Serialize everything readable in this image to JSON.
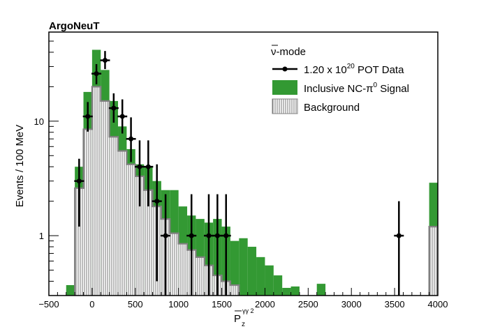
{
  "chart_data": {
    "type": "bar",
    "title": "ArgoNeuT",
    "xlabel_main": "P",
    "xlabel_sup": "γγ 2",
    "xlabel_sub": "z",
    "ylabel": "Events / 100 MeV",
    "xlim": [
      -500,
      4000
    ],
    "ylim": [
      0.3,
      60
    ],
    "yscale": "log",
    "x_ticks": [
      -500,
      0,
      500,
      1000,
      1500,
      2000,
      2500,
      3000,
      3500,
      4000
    ],
    "x_tick_labels": [
      "−500",
      "0",
      "500",
      "1000",
      "1500",
      "2000",
      "2500",
      "3000",
      "3500",
      "4000"
    ],
    "y_ticks": [
      1,
      10
    ],
    "y_tick_labels": [
      "1",
      "10"
    ],
    "legend_placement": "top-right",
    "legend": {
      "header_prefix": "ν",
      "header_suffix": "-mode",
      "data": {
        "pre": "1.20 x 10",
        "sup": "20",
        "post": " POT Data"
      },
      "signal": {
        "pre": "Inclusive NC-π",
        "sup": "0",
        "post": " Signal"
      },
      "background": "Background"
    },
    "colors": {
      "signal": "#339933",
      "background_line": "#808080",
      "data": "#000000"
    },
    "bin_width": 100,
    "series": [
      {
        "name": "Background",
        "bins": [
          {
            "x0": -200,
            "x1": -100,
            "value": 2.6
          },
          {
            "x0": -100,
            "x1": 0,
            "value": 8.5
          },
          {
            "x0": 0,
            "x1": 100,
            "value": 20
          },
          {
            "x0": 100,
            "x1": 200,
            "value": 15
          },
          {
            "x0": 200,
            "x1": 300,
            "value": 7.3
          },
          {
            "x0": 300,
            "x1": 400,
            "value": 5.5
          },
          {
            "x0": 400,
            "x1": 500,
            "value": 4.2
          },
          {
            "x0": 500,
            "x1": 600,
            "value": 3.3
          },
          {
            "x0": 600,
            "x1": 700,
            "value": 2.5
          },
          {
            "x0": 700,
            "x1": 800,
            "value": 1.8
          },
          {
            "x0": 800,
            "x1": 900,
            "value": 1.4
          },
          {
            "x0": 900,
            "x1": 1000,
            "value": 1.05
          },
          {
            "x0": 1000,
            "x1": 1100,
            "value": 0.85
          },
          {
            "x0": 1100,
            "x1": 1200,
            "value": 0.75
          },
          {
            "x0": 1200,
            "x1": 1300,
            "value": 0.65
          },
          {
            "x0": 1300,
            "x1": 1400,
            "value": 0.55
          },
          {
            "x0": 1400,
            "x1": 1500,
            "value": 0.45
          },
          {
            "x0": 1500,
            "x1": 1600,
            "value": 0.4
          },
          {
            "x0": 1600,
            "x1": 1700,
            "value": 0.37
          },
          {
            "x0": 3900,
            "x1": 4000,
            "value": 1.2
          }
        ]
      },
      {
        "name": "Inclusive NC-π0 Signal",
        "bins": [
          {
            "x0": -300,
            "x1": -200,
            "value": 0.37
          },
          {
            "x0": -200,
            "x1": -100,
            "value": 4.0
          },
          {
            "x0": -100,
            "x1": 0,
            "value": 18
          },
          {
            "x0": 0,
            "x1": 100,
            "value": 42
          },
          {
            "x0": 100,
            "x1": 200,
            "value": 28
          },
          {
            "x0": 200,
            "x1": 300,
            "value": 15
          },
          {
            "x0": 300,
            "x1": 400,
            "value": 9.0
          },
          {
            "x0": 400,
            "x1": 500,
            "value": 5.7
          },
          {
            "x0": 500,
            "x1": 600,
            "value": 4.2
          },
          {
            "x0": 600,
            "x1": 700,
            "value": 4.0
          },
          {
            "x0": 700,
            "x1": 800,
            "value": 3.0
          },
          {
            "x0": 800,
            "x1": 900,
            "value": 2.5
          },
          {
            "x0": 900,
            "x1": 1000,
            "value": 2.5
          },
          {
            "x0": 1000,
            "x1": 1100,
            "value": 1.8
          },
          {
            "x0": 1100,
            "x1": 1200,
            "value": 1.5
          },
          {
            "x0": 1200,
            "x1": 1300,
            "value": 1.4
          },
          {
            "x0": 1300,
            "x1": 1400,
            "value": 1.3
          },
          {
            "x0": 1400,
            "x1": 1500,
            "value": 1.4
          },
          {
            "x0": 1500,
            "x1": 1600,
            "value": 1.2
          },
          {
            "x0": 1600,
            "x1": 1700,
            "value": 0.9
          },
          {
            "x0": 1700,
            "x1": 1800,
            "value": 0.95
          },
          {
            "x0": 1800,
            "x1": 1900,
            "value": 0.8
          },
          {
            "x0": 1900,
            "x1": 2000,
            "value": 0.65
          },
          {
            "x0": 2000,
            "x1": 2100,
            "value": 0.55
          },
          {
            "x0": 2100,
            "x1": 2200,
            "value": 0.45
          },
          {
            "x0": 2200,
            "x1": 2300,
            "value": 0.35
          },
          {
            "x0": 2300,
            "x1": 2400,
            "value": 0.36
          },
          {
            "x0": 2600,
            "x1": 2700,
            "value": 0.38
          },
          {
            "x0": 3900,
            "x1": 4000,
            "value": 2.9
          }
        ]
      }
    ],
    "data_points": [
      {
        "x": -150,
        "y": 3.0,
        "err_lo": 1.2,
        "err_hi": 4.7
      },
      {
        "x": -50,
        "y": 11,
        "err_lo": 8.1,
        "err_hi": 14.7
      },
      {
        "x": 50,
        "y": 26,
        "err_lo": 21,
        "err_hi": 31.5
      },
      {
        "x": 150,
        "y": 34,
        "err_lo": 28.5,
        "err_hi": 41
      },
      {
        "x": 250,
        "y": 13,
        "err_lo": 9.7,
        "err_hi": 17.5
      },
      {
        "x": 350,
        "y": 11,
        "err_lo": 7.8,
        "err_hi": 15.5
      },
      {
        "x": 450,
        "y": 7.0,
        "err_lo": 4.4,
        "err_hi": 10.8
      },
      {
        "x": 550,
        "y": 4.0,
        "err_lo": 1.8,
        "err_hi": 6.8
      },
      {
        "x": 650,
        "y": 4.0,
        "err_lo": 1.8,
        "err_hi": 6.8
      },
      {
        "x": 750,
        "y": 2.0,
        "err_lo": 0.4,
        "err_hi": 4.2
      },
      {
        "x": 850,
        "y": 1.0,
        "err_lo": 0.3,
        "err_hi": 2.3
      },
      {
        "x": 1150,
        "y": 1.0,
        "err_lo": 0.3,
        "err_hi": 2.3
      },
      {
        "x": 1350,
        "y": 1.0,
        "err_lo": 0.3,
        "err_hi": 2.3
      },
      {
        "x": 1450,
        "y": 1.0,
        "err_lo": 0.3,
        "err_hi": 2.3
      },
      {
        "x": 1550,
        "y": 1.0,
        "err_lo": 0.3,
        "err_hi": 2.3
      },
      {
        "x": 3550,
        "y": 1.0,
        "err_lo": 0.3,
        "err_hi": 2.0
      }
    ]
  }
}
